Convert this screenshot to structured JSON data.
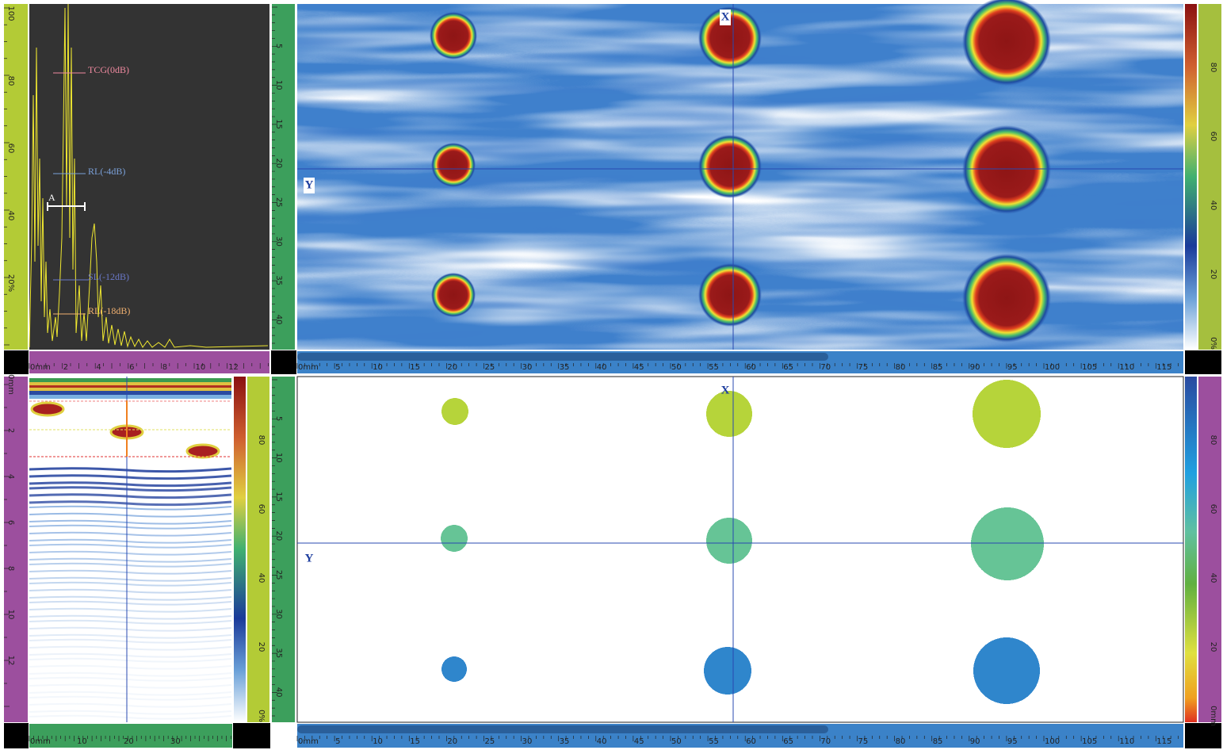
{
  "a_scan": {
    "y_axis": [
      "100",
      "80",
      "60",
      "40",
      "20%"
    ],
    "x_axis": [
      "0mm",
      "2",
      "4",
      "6",
      "8",
      "10",
      "12"
    ],
    "gates": [
      "TCG(0dB)",
      "RL(-4dB)",
      "SL(-12dB)",
      "RL(-18dB)"
    ],
    "cursor": "A"
  },
  "c_scan_amplitude": {
    "x_marker": "X",
    "y_marker": "Y",
    "y_axis": [
      "5",
      "10",
      "15",
      "20",
      "25",
      "30",
      "35",
      "40"
    ],
    "x_axis": [
      "0mm",
      "5",
      "10",
      "15",
      "20",
      "25",
      "30",
      "35",
      "40",
      "45",
      "50",
      "55",
      "60",
      "65",
      "70",
      "75",
      "80",
      "85",
      "90",
      "95",
      "100",
      "105",
      "110",
      "115"
    ],
    "color_scale": [
      "80",
      "60",
      "40",
      "20",
      "0%"
    ]
  },
  "b_scan": {
    "y_axis": [
      "0mm",
      "2",
      "4",
      "6",
      "8",
      "10",
      "12"
    ],
    "x_axis": [
      "0mm",
      "10",
      "20",
      "30"
    ],
    "color_scale": [
      "80",
      "60",
      "40",
      "20",
      "0%"
    ]
  },
  "c_scan_depth": {
    "x_marker": "X",
    "y_marker": "Y",
    "y_axis": [
      "5",
      "10",
      "15",
      "20",
      "25",
      "30",
      "35",
      "40"
    ],
    "x_axis": [
      "0mm",
      "5",
      "10",
      "15",
      "20",
      "25",
      "30",
      "35",
      "40",
      "45",
      "50",
      "55",
      "60",
      "65",
      "70",
      "75",
      "80",
      "85",
      "90",
      "95",
      "100",
      "105",
      "110",
      "115"
    ],
    "color_scale": [
      "80",
      "60",
      "40",
      "20",
      "0mm"
    ]
  }
}
